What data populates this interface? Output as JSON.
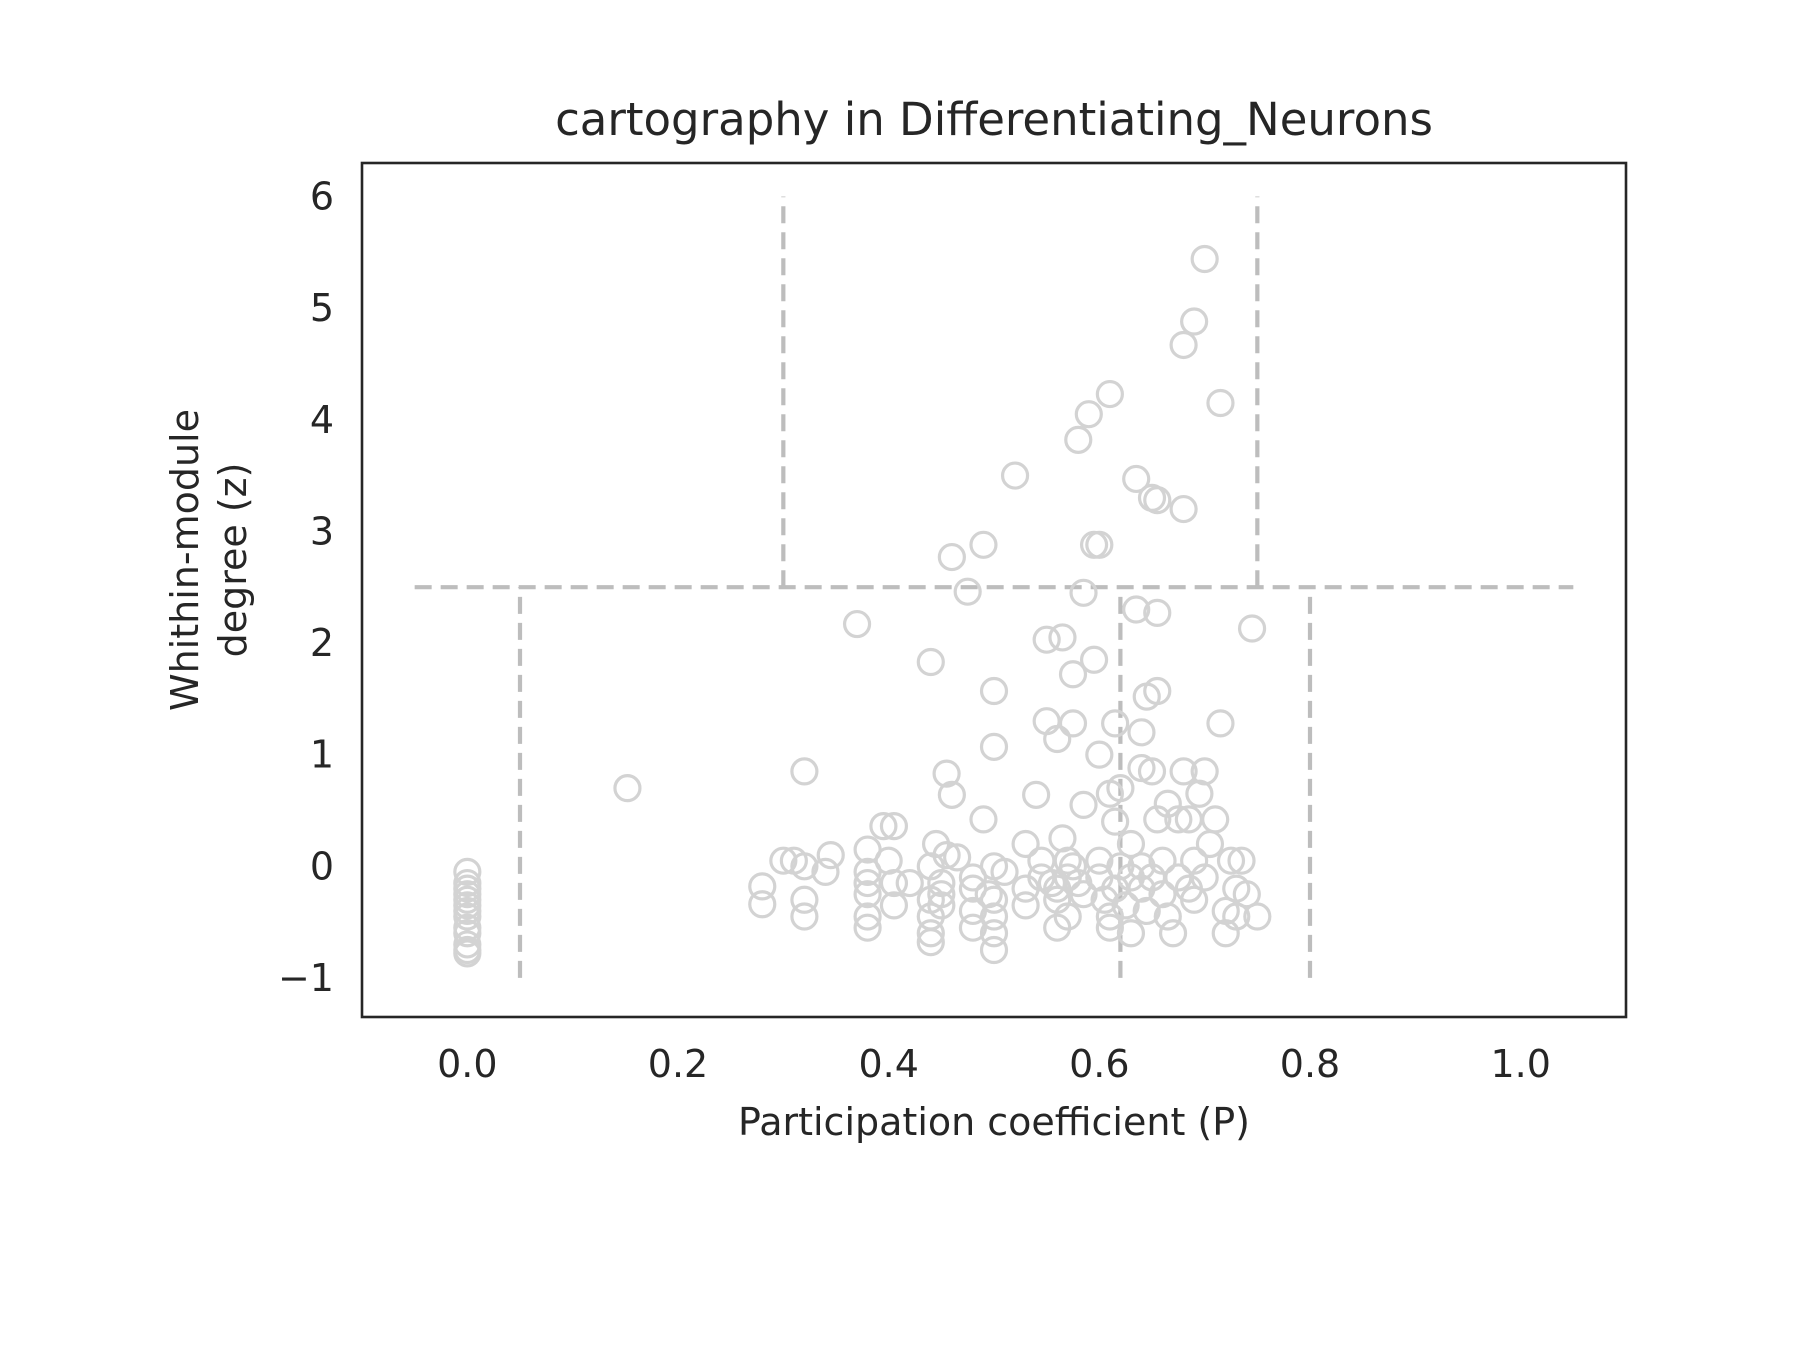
{
  "chart_data": {
    "type": "scatter",
    "title": "cartography in Differentiating_Neurons",
    "xlabel": "Participation coefficient (P)",
    "ylabel": [
      "Whithin-module",
      "degree (z)"
    ],
    "xlim": [
      -0.1,
      1.1
    ],
    "ylim": [
      -1.35,
      6.3
    ],
    "x_ticks": [
      0.0,
      0.2,
      0.4,
      0.6,
      0.8,
      1.0
    ],
    "x_tick_labels": [
      "0.0",
      "0.2",
      "0.4",
      "0.6",
      "0.8",
      "1.0"
    ],
    "y_ticks": [
      -1,
      0,
      1,
      2,
      3,
      4,
      5,
      6
    ],
    "y_tick_labels": [
      "−1",
      "0",
      "1",
      "2",
      "3",
      "4",
      "5",
      "6"
    ],
    "grid": false,
    "legend": "none",
    "colors": {
      "points": "#d3d3d3",
      "reference_lines": "#bdbdbd",
      "frame": "#262626",
      "text": "#262626"
    },
    "reference_lines": [
      {
        "orientation": "horizontal",
        "y": 2.5,
        "x_from": -0.05,
        "x_to": 1.05
      },
      {
        "orientation": "vertical",
        "x": 0.05,
        "y_from": -1.0,
        "y_to": 2.5
      },
      {
        "orientation": "vertical",
        "x": 0.62,
        "y_from": -1.0,
        "y_to": 2.5
      },
      {
        "orientation": "vertical",
        "x": 0.8,
        "y_from": -1.0,
        "y_to": 2.5
      },
      {
        "orientation": "vertical",
        "x": 0.3,
        "y_from": 2.5,
        "y_to": 6.0
      },
      {
        "orientation": "vertical",
        "x": 0.75,
        "y_from": 2.5,
        "y_to": 6.0
      }
    ],
    "points": [
      [
        0.0,
        -0.05
      ],
      [
        0.0,
        -0.15
      ],
      [
        0.0,
        -0.2
      ],
      [
        0.0,
        -0.25
      ],
      [
        0.0,
        -0.3
      ],
      [
        0.0,
        -0.35
      ],
      [
        0.0,
        -0.4
      ],
      [
        0.0,
        -0.45
      ],
      [
        0.0,
        -0.55
      ],
      [
        0.0,
        -0.6
      ],
      [
        0.0,
        -0.7
      ],
      [
        0.0,
        -0.75
      ],
      [
        0.0,
        -0.78
      ],
      [
        0.152,
        0.7
      ],
      [
        0.28,
        -0.18
      ],
      [
        0.28,
        -0.34
      ],
      [
        0.3,
        0.05
      ],
      [
        0.31,
        0.05
      ],
      [
        0.32,
        0.85
      ],
      [
        0.32,
        0.0
      ],
      [
        0.32,
        -0.3
      ],
      [
        0.32,
        -0.45
      ],
      [
        0.34,
        -0.05
      ],
      [
        0.345,
        0.1
      ],
      [
        0.37,
        2.17
      ],
      [
        0.38,
        0.15
      ],
      [
        0.38,
        -0.05
      ],
      [
        0.38,
        -0.15
      ],
      [
        0.38,
        -0.25
      ],
      [
        0.38,
        -0.45
      ],
      [
        0.38,
        -0.55
      ],
      [
        0.395,
        0.36
      ],
      [
        0.4,
        0.05
      ],
      [
        0.405,
        0.36
      ],
      [
        0.405,
        -0.15
      ],
      [
        0.405,
        -0.35
      ],
      [
        0.42,
        -0.15
      ],
      [
        0.44,
        1.83
      ],
      [
        0.44,
        0.0
      ],
      [
        0.44,
        -0.3
      ],
      [
        0.44,
        -0.45
      ],
      [
        0.44,
        -0.6
      ],
      [
        0.44,
        -0.68
      ],
      [
        0.445,
        0.2
      ],
      [
        0.45,
        -0.15
      ],
      [
        0.45,
        -0.25
      ],
      [
        0.45,
        -0.35
      ],
      [
        0.455,
        0.83
      ],
      [
        0.455,
        0.1
      ],
      [
        0.46,
        2.77
      ],
      [
        0.46,
        0.64
      ],
      [
        0.465,
        0.08
      ],
      [
        0.475,
        2.46
      ],
      [
        0.48,
        -0.1
      ],
      [
        0.48,
        -0.2
      ],
      [
        0.48,
        -0.4
      ],
      [
        0.48,
        -0.55
      ],
      [
        0.49,
        2.88
      ],
      [
        0.49,
        0.42
      ],
      [
        0.495,
        -0.25
      ],
      [
        0.5,
        1.57
      ],
      [
        0.5,
        1.07
      ],
      [
        0.5,
        0.0
      ],
      [
        0.5,
        -0.3
      ],
      [
        0.5,
        -0.45
      ],
      [
        0.5,
        -0.6
      ],
      [
        0.5,
        -0.75
      ],
      [
        0.51,
        -0.05
      ],
      [
        0.52,
        3.5
      ],
      [
        0.53,
        0.2
      ],
      [
        0.53,
        -0.2
      ],
      [
        0.53,
        -0.35
      ],
      [
        0.54,
        0.64
      ],
      [
        0.545,
        0.05
      ],
      [
        0.545,
        -0.1
      ],
      [
        0.55,
        2.03
      ],
      [
        0.55,
        1.3
      ],
      [
        0.555,
        -0.15
      ],
      [
        0.56,
        1.14
      ],
      [
        0.56,
        -0.2
      ],
      [
        0.56,
        -0.3
      ],
      [
        0.56,
        -0.55
      ],
      [
        0.565,
        2.05
      ],
      [
        0.565,
        0.25
      ],
      [
        0.57,
        0.05
      ],
      [
        0.57,
        -0.1
      ],
      [
        0.57,
        -0.45
      ],
      [
        0.575,
        1.72
      ],
      [
        0.575,
        1.28
      ],
      [
        0.575,
        0.0
      ],
      [
        0.58,
        3.82
      ],
      [
        0.58,
        -0.15
      ],
      [
        0.585,
        2.45
      ],
      [
        0.585,
        0.55
      ],
      [
        0.585,
        -0.25
      ],
      [
        0.59,
        4.05
      ],
      [
        0.595,
        2.88
      ],
      [
        0.595,
        1.85
      ],
      [
        0.6,
        2.88
      ],
      [
        0.6,
        1.0
      ],
      [
        0.6,
        0.05
      ],
      [
        0.6,
        -0.1
      ],
      [
        0.605,
        -0.3
      ],
      [
        0.61,
        4.23
      ],
      [
        0.61,
        0.65
      ],
      [
        0.61,
        -0.45
      ],
      [
        0.61,
        -0.55
      ],
      [
        0.615,
        1.28
      ],
      [
        0.615,
        0.4
      ],
      [
        0.615,
        -0.2
      ],
      [
        0.62,
        0.7
      ],
      [
        0.62,
        0.0
      ],
      [
        0.625,
        -0.35
      ],
      [
        0.63,
        0.2
      ],
      [
        0.63,
        -0.1
      ],
      [
        0.63,
        -0.6
      ],
      [
        0.635,
        3.47
      ],
      [
        0.635,
        2.3
      ],
      [
        0.64,
        1.2
      ],
      [
        0.64,
        0.88
      ],
      [
        0.64,
        0.0
      ],
      [
        0.64,
        -0.2
      ],
      [
        0.645,
        1.52
      ],
      [
        0.645,
        -0.4
      ],
      [
        0.65,
        3.3
      ],
      [
        0.65,
        0.85
      ],
      [
        0.65,
        -0.1
      ],
      [
        0.655,
        3.28
      ],
      [
        0.655,
        2.27
      ],
      [
        0.655,
        1.57
      ],
      [
        0.655,
        0.42
      ],
      [
        0.66,
        0.05
      ],
      [
        0.66,
        -0.25
      ],
      [
        0.665,
        0.56
      ],
      [
        0.665,
        -0.45
      ],
      [
        0.67,
        -0.6
      ],
      [
        0.675,
        0.42
      ],
      [
        0.675,
        -0.1
      ],
      [
        0.68,
        4.67
      ],
      [
        0.68,
        3.2
      ],
      [
        0.68,
        0.85
      ],
      [
        0.685,
        0.42
      ],
      [
        0.685,
        -0.2
      ],
      [
        0.69,
        4.88
      ],
      [
        0.69,
        0.05
      ],
      [
        0.69,
        -0.3
      ],
      [
        0.695,
        0.65
      ],
      [
        0.7,
        5.44
      ],
      [
        0.7,
        0.85
      ],
      [
        0.7,
        -0.1
      ],
      [
        0.705,
        0.2
      ],
      [
        0.71,
        0.42
      ],
      [
        0.715,
        4.15
      ],
      [
        0.715,
        1.28
      ],
      [
        0.72,
        -0.4
      ],
      [
        0.72,
        -0.6
      ],
      [
        0.725,
        0.05
      ],
      [
        0.73,
        -0.2
      ],
      [
        0.73,
        -0.45
      ],
      [
        0.735,
        0.05
      ],
      [
        0.74,
        -0.25
      ],
      [
        0.745,
        2.13
      ],
      [
        0.75,
        -0.45
      ]
    ]
  }
}
